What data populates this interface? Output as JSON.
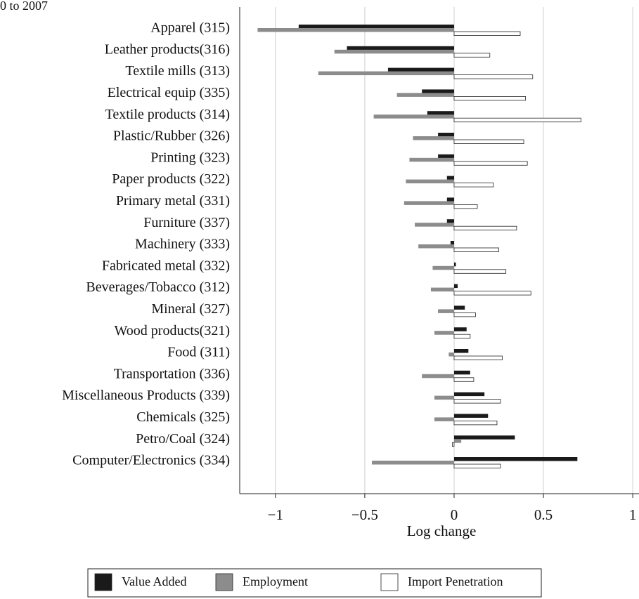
{
  "chart_data": {
    "type": "barh",
    "title": "0 to 2007",
    "x_label": "Log change",
    "categories": [
      "Apparel (315)",
      "Leather products(316)",
      "Textile mills (313)",
      "Electrical equip (335)",
      "Textile products (314)",
      "Plastic/Rubber (326)",
      "Printing (323)",
      "Paper products (322)",
      "Primary metal (331)",
      "Furniture (337)",
      "Machinery (333)",
      "Fabricated metal (332)",
      "Beverages/Tobacco  (312)",
      "Mineral (327)",
      "Wood products(321)",
      "Food (311)",
      "Transportation (336)",
      "Miscellaneous Products (339)",
      "Chemicals (325)",
      "Petro/Coal (324)",
      "Computer/Electronics (334)"
    ],
    "series": [
      {
        "name": "Value Added",
        "color": "#1a1a1a",
        "values": [
          -0.87,
          -0.6,
          -0.37,
          -0.18,
          -0.15,
          -0.09,
          -0.09,
          -0.04,
          -0.04,
          -0.04,
          -0.02,
          0.01,
          0.02,
          0.06,
          0.07,
          0.08,
          0.09,
          0.17,
          0.19,
          0.34,
          0.69
        ]
      },
      {
        "name": "Employment",
        "color": "#8c8c8c",
        "values": [
          -1.1,
          -0.67,
          -0.76,
          -0.32,
          -0.45,
          -0.23,
          -0.25,
          -0.27,
          -0.28,
          -0.22,
          -0.2,
          -0.12,
          -0.13,
          -0.09,
          -0.11,
          -0.03,
          -0.18,
          -0.11,
          -0.11,
          0.04,
          -0.46
        ]
      },
      {
        "name": "Import Penetration",
        "color": "#ffffff",
        "values": [
          0.37,
          0.2,
          0.44,
          0.4,
          0.71,
          0.39,
          0.41,
          0.22,
          0.13,
          0.35,
          0.25,
          0.29,
          0.43,
          0.12,
          0.09,
          0.27,
          0.11,
          0.26,
          0.24,
          -0.01,
          0.26
        ]
      }
    ],
    "xlim": [
      -1.2,
      1.035
    ],
    "xticks": [
      {
        "value": -1,
        "label": "−1"
      },
      {
        "value": -0.5,
        "label": "−0.5"
      },
      0,
      0.5,
      1
    ],
    "grid": true,
    "legend": "bottom"
  }
}
